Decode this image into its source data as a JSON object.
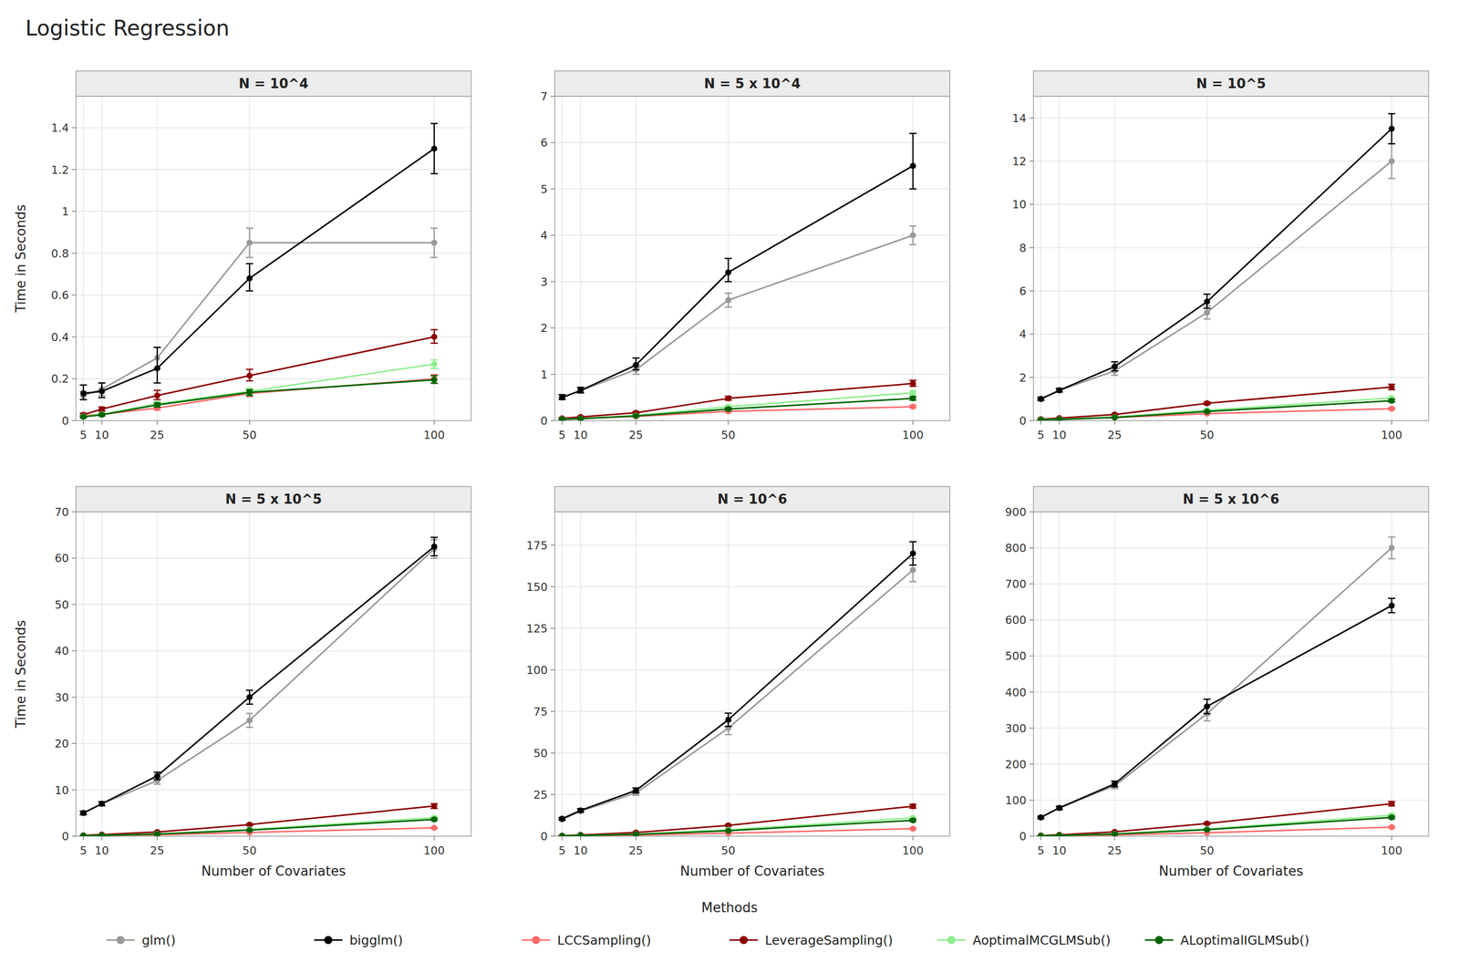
{
  "title": "Logistic Regression",
  "legend_title": "Methods",
  "chart_data": [
    {
      "type": "line",
      "title": "N = 10^4",
      "ylabel": "Time in Seconds",
      "marker": "circle",
      "grid": true,
      "x": [
        5,
        10,
        25,
        50,
        100
      ],
      "xlim": [
        3,
        110
      ],
      "xticks": [
        5,
        10,
        25,
        50,
        100
      ],
      "ylim": [
        0,
        1.55
      ],
      "yticks": [
        0,
        0.2,
        0.4,
        0.6,
        0.8,
        1,
        1.2,
        1.4
      ],
      "series": [
        {
          "name": "glm()",
          "color": "#999999",
          "values": [
            0.12,
            0.15,
            0.3,
            0.85,
            0.85
          ],
          "lo": [
            0.1,
            0.12,
            0.25,
            0.78,
            0.78
          ],
          "hi": [
            0.14,
            0.18,
            0.35,
            0.92,
            0.92
          ]
        },
        {
          "name": "bigglm()",
          "color": "#000000",
          "values": [
            0.13,
            0.14,
            0.25,
            0.68,
            1.3
          ],
          "lo": [
            0.1,
            0.11,
            0.18,
            0.62,
            1.18
          ],
          "hi": [
            0.17,
            0.18,
            0.35,
            0.75,
            1.42
          ]
        },
        {
          "name": "LCCSampling()",
          "color": "#FF6B6B",
          "values": [
            0.025,
            0.03,
            0.06,
            0.13,
            0.2
          ],
          "lo": [
            0.02,
            0.025,
            0.05,
            0.115,
            0.18
          ],
          "hi": [
            0.03,
            0.035,
            0.07,
            0.145,
            0.22
          ]
        },
        {
          "name": "LeverageSampling()",
          "color": "#8B0000",
          "values": [
            0.028,
            0.055,
            0.12,
            0.215,
            0.4
          ],
          "lo": [
            0.022,
            0.045,
            0.1,
            0.19,
            0.37
          ],
          "hi": [
            0.035,
            0.065,
            0.145,
            0.245,
            0.435
          ]
        },
        {
          "name": "AoptimalMCGLMSub()",
          "color": "#90EE90",
          "values": [
            0.02,
            0.03,
            0.08,
            0.14,
            0.27
          ],
          "lo": [
            0.015,
            0.025,
            0.07,
            0.125,
            0.25
          ],
          "hi": [
            0.025,
            0.035,
            0.09,
            0.155,
            0.29
          ]
        },
        {
          "name": "ALoptimalIGLMSub()",
          "color": "#006400",
          "values": [
            0.018,
            0.028,
            0.075,
            0.135,
            0.195
          ],
          "lo": [
            0.013,
            0.022,
            0.065,
            0.12,
            0.178
          ],
          "hi": [
            0.022,
            0.033,
            0.085,
            0.148,
            0.215
          ]
        }
      ]
    },
    {
      "type": "line",
      "title": "N = 5 x 10^4",
      "marker": "circle",
      "grid": true,
      "x": [
        5,
        10,
        25,
        50,
        100
      ],
      "xlim": [
        3,
        110
      ],
      "xticks": [
        5,
        10,
        25,
        50,
        100
      ],
      "ylim": [
        0,
        7.0
      ],
      "yticks": [
        0,
        1,
        2,
        3,
        4,
        5,
        6,
        7
      ],
      "series": [
        {
          "name": "glm()",
          "color": "#999999",
          "values": [
            0.5,
            0.65,
            1.1,
            2.6,
            4.0
          ],
          "lo": [
            0.45,
            0.6,
            1.0,
            2.45,
            3.8
          ],
          "hi": [
            0.55,
            0.7,
            1.2,
            2.75,
            4.2
          ]
        },
        {
          "name": "bigglm()",
          "color": "#000000",
          "values": [
            0.5,
            0.65,
            1.2,
            3.2,
            5.5
          ],
          "lo": [
            0.46,
            0.6,
            1.1,
            3.0,
            5.0
          ],
          "hi": [
            0.56,
            0.72,
            1.35,
            3.5,
            6.2
          ]
        },
        {
          "name": "LCCSampling()",
          "color": "#FF6B6B",
          "values": [
            0.04,
            0.05,
            0.09,
            0.2,
            0.3
          ],
          "lo": [
            0.035,
            0.044,
            0.082,
            0.185,
            0.275
          ],
          "hi": [
            0.048,
            0.058,
            0.1,
            0.22,
            0.33
          ]
        },
        {
          "name": "LeverageSampling()",
          "color": "#8B0000",
          "values": [
            0.05,
            0.08,
            0.17,
            0.48,
            0.8
          ],
          "lo": [
            0.04,
            0.07,
            0.15,
            0.44,
            0.74
          ],
          "hi": [
            0.062,
            0.092,
            0.195,
            0.525,
            0.87
          ]
        },
        {
          "name": "AoptimalMCGLMSub()",
          "color": "#90EE90",
          "values": [
            0.032,
            0.045,
            0.11,
            0.3,
            0.6
          ],
          "lo": [
            0.026,
            0.038,
            0.095,
            0.27,
            0.555
          ],
          "hi": [
            0.038,
            0.052,
            0.125,
            0.33,
            0.645
          ]
        },
        {
          "name": "ALoptimalIGLMSub()",
          "color": "#006400",
          "values": [
            0.028,
            0.04,
            0.1,
            0.25,
            0.48
          ],
          "lo": [
            0.022,
            0.033,
            0.085,
            0.225,
            0.44
          ],
          "hi": [
            0.034,
            0.047,
            0.115,
            0.275,
            0.52
          ]
        }
      ]
    },
    {
      "type": "line",
      "title": "N = 10^5",
      "marker": "circle",
      "grid": true,
      "x": [
        5,
        10,
        25,
        50,
        100
      ],
      "xlim": [
        3,
        110
      ],
      "xticks": [
        5,
        10,
        25,
        50,
        100
      ],
      "ylim": [
        0,
        15.0
      ],
      "yticks": [
        0,
        2,
        4,
        6,
        8,
        10,
        12,
        14
      ],
      "series": [
        {
          "name": "glm()",
          "color": "#999999",
          "values": [
            1.0,
            1.4,
            2.3,
            5.0,
            12.0
          ],
          "lo": [
            0.9,
            1.3,
            2.1,
            4.7,
            11.2
          ],
          "hi": [
            1.1,
            1.5,
            2.5,
            5.3,
            12.8
          ]
        },
        {
          "name": "bigglm()",
          "color": "#000000",
          "values": [
            1.0,
            1.4,
            2.5,
            5.5,
            13.5
          ],
          "lo": [
            0.95,
            1.33,
            2.3,
            5.2,
            12.8
          ],
          "hi": [
            1.06,
            1.48,
            2.72,
            5.85,
            14.2
          ]
        },
        {
          "name": "LCCSampling()",
          "color": "#FF6B6B",
          "values": [
            0.06,
            0.08,
            0.14,
            0.32,
            0.55
          ],
          "lo": [
            0.053,
            0.072,
            0.128,
            0.298,
            0.51
          ],
          "hi": [
            0.068,
            0.088,
            0.152,
            0.342,
            0.59
          ]
        },
        {
          "name": "LeverageSampling()",
          "color": "#8B0000",
          "values": [
            0.07,
            0.12,
            0.28,
            0.8,
            1.55
          ],
          "lo": [
            0.058,
            0.105,
            0.25,
            0.74,
            1.43
          ],
          "hi": [
            0.083,
            0.138,
            0.315,
            0.865,
            1.68
          ]
        },
        {
          "name": "AoptimalMCGLMSub()",
          "color": "#90EE90",
          "values": [
            0.045,
            0.065,
            0.165,
            0.48,
            1.05
          ],
          "lo": [
            0.037,
            0.055,
            0.148,
            0.44,
            0.98
          ],
          "hi": [
            0.053,
            0.075,
            0.183,
            0.52,
            1.12
          ]
        },
        {
          "name": "ALoptimalIGLMSub()",
          "color": "#006400",
          "values": [
            0.038,
            0.055,
            0.145,
            0.42,
            0.92
          ],
          "lo": [
            0.03,
            0.046,
            0.128,
            0.385,
            0.855
          ],
          "hi": [
            0.046,
            0.064,
            0.162,
            0.455,
            0.985
          ]
        }
      ]
    },
    {
      "type": "line",
      "title": "N = 5 x 10^5",
      "xlabel": "Number of Covariates",
      "ylabel": "Time in Seconds",
      "marker": "circle",
      "grid": true,
      "x": [
        5,
        10,
        25,
        50,
        100
      ],
      "xlim": [
        3,
        110
      ],
      "xticks": [
        5,
        10,
        25,
        50,
        100
      ],
      "ylim": [
        0,
        70.0
      ],
      "yticks": [
        0,
        10,
        20,
        30,
        40,
        50,
        60,
        70
      ],
      "series": [
        {
          "name": "glm()",
          "color": "#999999",
          "values": [
            5.0,
            7.0,
            12.0,
            25.0,
            62.0
          ],
          "lo": [
            4.5,
            6.5,
            11.2,
            23.5,
            60.0
          ],
          "hi": [
            5.5,
            7.5,
            12.8,
            26.5,
            64.0
          ]
        },
        {
          "name": "bigglm()",
          "color": "#000000",
          "values": [
            5.0,
            7.0,
            13.0,
            30.0,
            62.5
          ],
          "lo": [
            4.7,
            6.6,
            12.2,
            28.5,
            60.5
          ],
          "hi": [
            5.3,
            7.4,
            13.8,
            31.5,
            64.5
          ]
        },
        {
          "name": "LCCSampling()",
          "color": "#FF6B6B",
          "values": [
            0.12,
            0.18,
            0.3,
            0.8,
            1.8
          ],
          "lo": [
            0.1,
            0.15,
            0.26,
            0.73,
            1.65
          ],
          "hi": [
            0.14,
            0.21,
            0.34,
            0.87,
            1.95
          ]
        },
        {
          "name": "LeverageSampling()",
          "color": "#8B0000",
          "values": [
            0.18,
            0.35,
            0.9,
            2.5,
            6.5
          ],
          "lo": [
            0.15,
            0.3,
            0.82,
            2.3,
            6.0
          ],
          "hi": [
            0.21,
            0.4,
            0.98,
            2.7,
            7.0
          ]
        },
        {
          "name": "AoptimalMCGLMSub()",
          "color": "#90EE90",
          "values": [
            0.1,
            0.18,
            0.5,
            1.45,
            4.0
          ],
          "lo": [
            0.085,
            0.155,
            0.45,
            1.33,
            3.75
          ],
          "hi": [
            0.115,
            0.205,
            0.55,
            1.57,
            4.25
          ]
        },
        {
          "name": "ALoptimalIGLMSub()",
          "color": "#006400",
          "values": [
            0.085,
            0.155,
            0.43,
            1.3,
            3.6
          ],
          "lo": [
            0.07,
            0.132,
            0.385,
            1.18,
            3.35
          ],
          "hi": [
            0.1,
            0.178,
            0.475,
            1.42,
            3.85
          ]
        }
      ]
    },
    {
      "type": "line",
      "title": "N = 10^6",
      "xlabel": "Number of Covariates",
      "marker": "circle",
      "grid": true,
      "x": [
        5,
        10,
        25,
        50,
        100
      ],
      "xlim": [
        3,
        110
      ],
      "xticks": [
        5,
        10,
        25,
        50,
        100
      ],
      "ylim": [
        0,
        195.0
      ],
      "yticks": [
        0,
        25,
        50,
        75,
        100,
        125,
        150,
        175
      ],
      "series": [
        {
          "name": "glm()",
          "color": "#999999",
          "values": [
            10.0,
            15.0,
            26.0,
            65.0,
            160.0
          ],
          "lo": [
            9.2,
            14.0,
            24.5,
            61.0,
            153.0
          ],
          "hi": [
            10.8,
            16.0,
            27.5,
            69.0,
            167.0
          ]
        },
        {
          "name": "bigglm()",
          "color": "#000000",
          "values": [
            10.5,
            15.5,
            27.5,
            70.0,
            170.0
          ],
          "lo": [
            9.8,
            14.5,
            26.0,
            66.0,
            163.0
          ],
          "hi": [
            11.2,
            16.5,
            29.0,
            74.0,
            177.0
          ]
        },
        {
          "name": "LCCSampling()",
          "color": "#FF6B6B",
          "values": [
            0.25,
            0.38,
            0.65,
            1.8,
            4.5
          ],
          "lo": [
            0.22,
            0.33,
            0.58,
            1.65,
            4.15
          ],
          "hi": [
            0.28,
            0.43,
            0.72,
            1.95,
            4.85
          ]
        },
        {
          "name": "LeverageSampling()",
          "color": "#8B0000",
          "values": [
            0.4,
            0.8,
            2.2,
            6.5,
            18.0
          ],
          "lo": [
            0.34,
            0.7,
            1.98,
            6.0,
            16.8
          ],
          "hi": [
            0.46,
            0.9,
            2.42,
            7.0,
            19.2
          ]
        },
        {
          "name": "AoptimalMCGLMSub()",
          "color": "#90EE90",
          "values": [
            0.22,
            0.42,
            1.2,
            3.8,
            11.0
          ],
          "lo": [
            0.188,
            0.365,
            1.08,
            3.5,
            10.2
          ],
          "hi": [
            0.252,
            0.475,
            1.32,
            4.1,
            11.8
          ]
        },
        {
          "name": "ALoptimalIGLMSub()",
          "color": "#006400",
          "values": [
            0.19,
            0.36,
            1.05,
            3.3,
            9.5
          ],
          "lo": [
            0.16,
            0.31,
            0.935,
            3.02,
            8.8
          ],
          "hi": [
            0.22,
            0.41,
            1.165,
            3.58,
            10.2
          ]
        }
      ]
    },
    {
      "type": "line",
      "title": "N = 5 x 10^6",
      "xlabel": "Number of Covariates",
      "marker": "circle",
      "grid": true,
      "x": [
        5,
        10,
        25,
        50,
        100
      ],
      "xlim": [
        3,
        110
      ],
      "xticks": [
        5,
        10,
        25,
        50,
        100
      ],
      "ylim": [
        0,
        900.0
      ],
      "yticks": [
        0,
        100,
        200,
        300,
        400,
        500,
        600,
        700,
        800,
        900
      ],
      "series": [
        {
          "name": "glm()",
          "color": "#999999",
          "values": [
            52.0,
            78.0,
            140.0,
            340.0,
            800.0
          ],
          "lo": [
            48.0,
            73.0,
            132.0,
            320.0,
            770.0
          ],
          "hi": [
            56.0,
            83.0,
            148.0,
            360.0,
            830.0
          ]
        },
        {
          "name": "bigglm()",
          "color": "#000000",
          "values": [
            52.0,
            78.5,
            145.0,
            360.0,
            640.0
          ],
          "lo": [
            49.0,
            74.0,
            137.0,
            340.0,
            620.0
          ],
          "hi": [
            55.0,
            83.0,
            153.0,
            380.0,
            660.0
          ]
        },
        {
          "name": "LCCSampling()",
          "color": "#FF6B6B",
          "values": [
            1.2,
            1.9,
            3.5,
            9.5,
            25.0
          ],
          "lo": [
            1.05,
            1.7,
            3.15,
            8.8,
            23.0
          ],
          "hi": [
            1.35,
            2.1,
            3.85,
            10.2,
            27.0
          ]
        },
        {
          "name": "LeverageSampling()",
          "color": "#8B0000",
          "values": [
            2.0,
            4.0,
            12.0,
            35.0,
            90.0
          ],
          "lo": [
            1.75,
            3.6,
            10.8,
            32.5,
            84.0
          ],
          "hi": [
            2.25,
            4.4,
            13.2,
            37.5,
            96.0
          ]
        },
        {
          "name": "AoptimalMCGLMSub()",
          "color": "#90EE90",
          "values": [
            1.1,
            2.2,
            6.5,
            20.0,
            58.0
          ],
          "lo": [
            0.95,
            1.95,
            5.9,
            18.5,
            54.0
          ],
          "hi": [
            1.25,
            2.45,
            7.1,
            21.5,
            62.0
          ]
        },
        {
          "name": "ALoptimalIGLMSub()",
          "color": "#006400",
          "values": [
            0.95,
            1.9,
            5.8,
            18.0,
            52.0
          ],
          "lo": [
            0.82,
            1.68,
            5.2,
            16.6,
            48.5
          ],
          "hi": [
            1.08,
            2.12,
            6.4,
            19.4,
            55.5
          ]
        }
      ]
    }
  ]
}
